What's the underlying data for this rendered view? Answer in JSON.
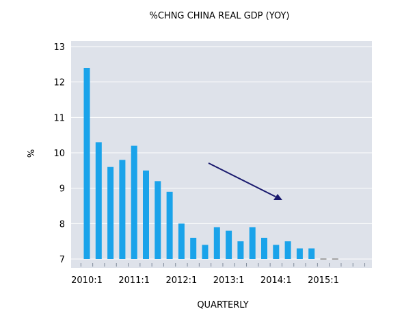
{
  "chart_data": {
    "type": "bar",
    "title": "%CHNG CHINA REAL GDP (YOY)",
    "xlabel": "QUARTERLY",
    "ylabel": "%",
    "ylim": [
      7,
      13
    ],
    "yticks": [
      "7",
      "8",
      "9",
      "10",
      "11",
      "12",
      "13"
    ],
    "xtick_labels": [
      "2010:1",
      "2011:1",
      "2012:1",
      "2013:1",
      "2014:1",
      "2015:1"
    ],
    "categories": [
      "2010:1",
      "2010:2",
      "2010:3",
      "2010:4",
      "2011:1",
      "2011:2",
      "2011:3",
      "2011:4",
      "2012:1",
      "2012:2",
      "2012:3",
      "2012:4",
      "2013:1",
      "2013:2",
      "2013:3",
      "2013:4",
      "2014:1",
      "2014:2",
      "2014:3",
      "2014:4",
      "2015:1",
      "2015:2"
    ],
    "values": [
      12.4,
      10.3,
      9.6,
      9.8,
      10.2,
      9.5,
      9.2,
      8.9,
      8.0,
      7.6,
      7.4,
      7.9,
      7.8,
      7.5,
      7.9,
      7.6,
      7.4,
      7.5,
      7.3,
      7.3,
      7.0,
      7.0
    ],
    "grid": true,
    "colors": {
      "bar": "#1AA3EA",
      "plot_bg": "#DEE2EA",
      "grid": "#FFFFFF",
      "arrow": "#1A1A6E",
      "zero_bar": "#A6A6A6"
    }
  }
}
